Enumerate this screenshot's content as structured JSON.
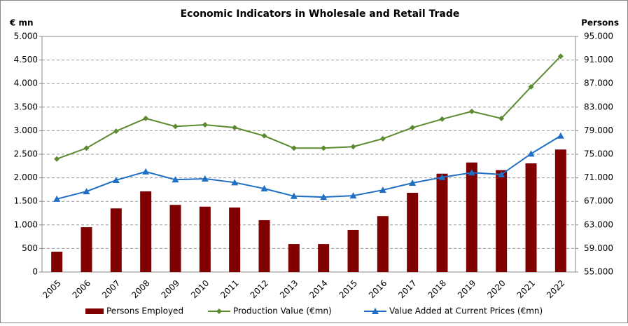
{
  "chart_data": {
    "type": "bar",
    "title": "Economic Indicators in Wholesale and Retail Trade",
    "y_label": "€ mn",
    "y2_label": "Persons",
    "categories": [
      "2005",
      "2006",
      "2007",
      "2008",
      "2009",
      "2010",
      "2011",
      "2012",
      "2013",
      "2014",
      "2015",
      "2016",
      "2017",
      "2018",
      "2019",
      "2020",
      "2021",
      "2022"
    ],
    "series": [
      {
        "name": "Persons Employed",
        "type": "bar",
        "axis": "y2",
        "color": "#800000",
        "values": [
          58450,
          62600,
          65800,
          68700,
          66400,
          66100,
          65950,
          63800,
          59750,
          59750,
          62150,
          64500,
          68450,
          71700,
          73600,
          72300,
          73450,
          75800
        ]
      },
      {
        "name": "Production Value (€mn)",
        "type": "line",
        "marker": "diamond",
        "color": "#5b8a2f",
        "values": [
          2400,
          2630,
          2990,
          3260,
          3090,
          3125,
          3065,
          2890,
          2630,
          2630,
          2660,
          2830,
          3065,
          3245,
          3410,
          3260,
          3930,
          4580
        ]
      },
      {
        "name": "Value Added at Current Prices (€mn)",
        "type": "line",
        "marker": "triangle",
        "color": "#1f6fc5",
        "values": [
          1550,
          1710,
          1950,
          2130,
          1960,
          1980,
          1900,
          1770,
          1610,
          1590,
          1620,
          1740,
          1890,
          2010,
          2110,
          2070,
          2510,
          2890
        ]
      }
    ],
    "ylim": [
      0,
      5000
    ],
    "yticks": [
      {
        "value": 0,
        "label": "0"
      },
      {
        "value": 500,
        "label": "500"
      },
      {
        "value": 1000,
        "label": "1.000"
      },
      {
        "value": 1500,
        "label": "1.500"
      },
      {
        "value": 2000,
        "label": "2.000"
      },
      {
        "value": 2500,
        "label": "2.500"
      },
      {
        "value": 3000,
        "label": "3.000"
      },
      {
        "value": 3500,
        "label": "3.500"
      },
      {
        "value": 4000,
        "label": "4.000"
      },
      {
        "value": 4500,
        "label": "4.500"
      },
      {
        "value": 5000,
        "label": "5.000"
      }
    ],
    "y2lim": [
      55000,
      95000
    ],
    "y2ticks": [
      {
        "value": 55000,
        "label": "55.000"
      },
      {
        "value": 59000,
        "label": "59.000"
      },
      {
        "value": 63000,
        "label": "63.000"
      },
      {
        "value": 67000,
        "label": "67.000"
      },
      {
        "value": 71000,
        "label": "71.000"
      },
      {
        "value": 75000,
        "label": "75.000"
      },
      {
        "value": 79000,
        "label": "79.000"
      },
      {
        "value": 83000,
        "label": "83.000"
      },
      {
        "value": 87000,
        "label": "87.000"
      },
      {
        "value": 91000,
        "label": "91.000"
      },
      {
        "value": 95000,
        "label": "95.000"
      }
    ],
    "grid": true,
    "legend": "bottom"
  }
}
